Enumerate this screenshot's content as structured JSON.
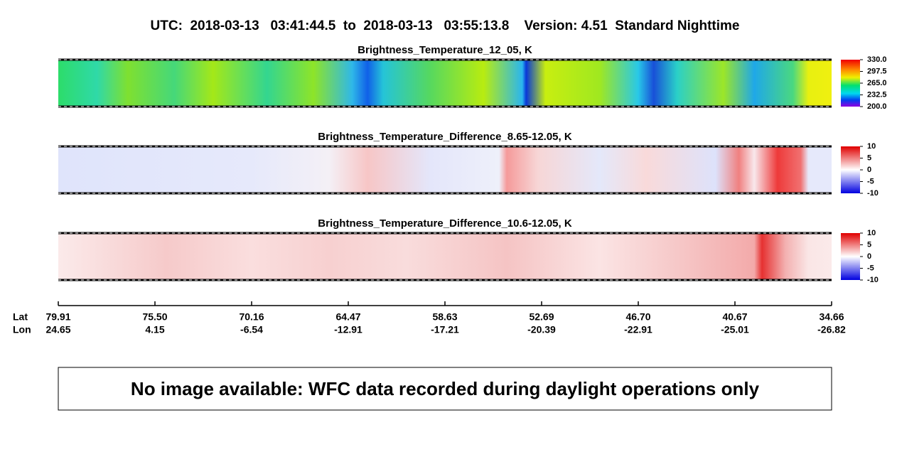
{
  "header": {
    "title": "UTC:  2018-03-13   03:41:44.5  to  2018-03-13   03:55:13.8    Version: 4.51  Standard Nighttime"
  },
  "panels": [
    {
      "title": "Brightness_Temperature_12_05, K",
      "colorbar": [
        "330.0",
        "297.5",
        "265.0",
        "232.5",
        "200.0"
      ]
    },
    {
      "title": "Brightness_Temperature_Difference_8.65-12.05, K",
      "colorbar": [
        "10",
        "5",
        "0",
        "-5",
        "-10"
      ]
    },
    {
      "title": "Brightness_Temperature_Difference_10.6-12.05, K",
      "colorbar": [
        "10",
        "5",
        "0",
        "-5",
        "-10"
      ]
    }
  ],
  "axis": {
    "lat_label": "Lat",
    "lon_label": "Lon",
    "lat": [
      "79.91",
      "75.50",
      "70.16",
      "64.47",
      "58.63",
      "52.69",
      "46.70",
      "40.67",
      "34.66"
    ],
    "lon": [
      "24.65",
      "4.15",
      "-6.54",
      "-12.91",
      "-17.21",
      "-20.39",
      "-22.91",
      "-25.01",
      "-26.82"
    ]
  },
  "message": "No image available: WFC data recorded during daylight operations only"
}
